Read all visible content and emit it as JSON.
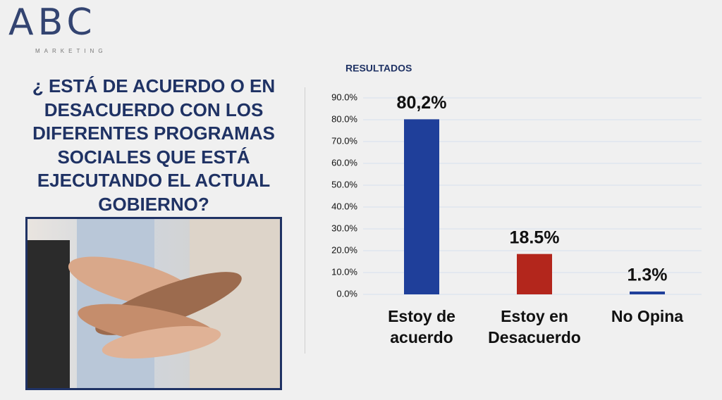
{
  "logo": {
    "name": "ABC",
    "tagline": "MARKETING"
  },
  "question": "¿ ESTÁ DE ACUERDO O EN DESACUERDO CON LOS DIFERENTES PROGRAMAS SOCIALES QUE ESTÁ EJECUTANDO EL ACTUAL GOBIERNO?",
  "chart_data": {
    "type": "bar",
    "title": "RESULTADOS",
    "categories": [
      "Estoy de acuerdo",
      "Estoy en Desacuerdo",
      "No Opina"
    ],
    "values": [
      80.2,
      18.5,
      1.3
    ],
    "value_labels": [
      "80,2%",
      "18.5%",
      "1.3%"
    ],
    "colors": [
      "#1f3f9a",
      "#b3261c",
      "#1f3f9a"
    ],
    "ylim": [
      0,
      90
    ],
    "yticks": [
      {
        "value": 0,
        "label": "0.0%"
      },
      {
        "value": 10,
        "label": "10.0%"
      },
      {
        "value": 20,
        "label": "20.0%"
      },
      {
        "value": 30,
        "label": "30.0%"
      },
      {
        "value": 40,
        "label": "40.0%"
      },
      {
        "value": 50,
        "label": "50.0%"
      },
      {
        "value": 60,
        "label": "60.0%"
      },
      {
        "value": 70,
        "label": "70.0%"
      },
      {
        "value": 80,
        "label": "80.0%"
      },
      {
        "value": 90,
        "label": "90.0%"
      }
    ],
    "grid": true
  }
}
